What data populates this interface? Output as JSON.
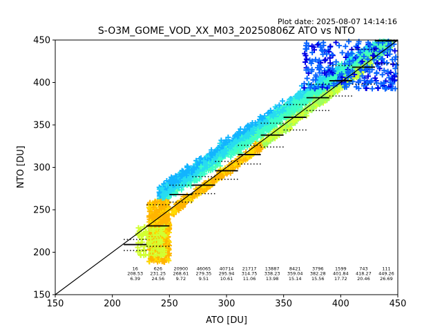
{
  "plot_date": "Plot date: 2025-08-07 14:14:16",
  "chart_data": {
    "type": "scatter",
    "title": "S-O3M_GOME_VOD_XX_M03_20250806Z ATO vs NTO",
    "xlabel": "ATO [DU]",
    "ylabel": "NTO [DU]",
    "xlim": [
      150,
      450
    ],
    "ylim": [
      150,
      450
    ],
    "xticks": [
      "150",
      "200",
      "250",
      "300",
      "350",
      "400",
      "450"
    ],
    "yticks": [
      "150",
      "200",
      "250",
      "300",
      "350",
      "400",
      "450"
    ],
    "grid": false,
    "marker": "+",
    "reference_line": "1:1",
    "density_colors": [
      "#ffb400",
      "#ffdc00",
      "#d2ff32",
      "#9cff5e",
      "#5cffa0",
      "#3cffc8",
      "#28dcf0",
      "#12b4ff",
      "#0a64ff",
      "#0000e6"
    ],
    "point_clouds": [
      {
        "x_range": [
          232,
          250
        ],
        "y_range": [
          185,
          262
        ],
        "color": "#ffb400"
      },
      {
        "x_range": [
          222,
          246
        ],
        "y_range": [
          196,
          230
        ],
        "color": "#d2ff32"
      },
      {
        "x_range": [
          241,
          300
        ],
        "y_range": [
          230,
          320
        ],
        "color": "#3cffc8"
      },
      {
        "x_range": [
          290,
          430
        ],
        "y_range": [
          280,
          420
        ],
        "color": "#5cffa0"
      },
      {
        "x_range": [
          370,
          450
        ],
        "y_range": [
          395,
          450
        ],
        "color": "#0a64ff"
      }
    ],
    "bins": [
      {
        "count": "16",
        "mean_ato": "208.53",
        "mean_nto_offset": "6.39",
        "center": 220,
        "median": 209,
        "p_low": 202,
        "p_high": 215
      },
      {
        "count": "626",
        "mean_ato": "231.25",
        "mean_nto_offset": "24.56",
        "center": 240,
        "median": 231,
        "p_low": 207,
        "p_high": 256
      },
      {
        "count": "20900",
        "mean_ato": "268.61",
        "mean_nto_offset": "9.72",
        "center": 260,
        "median": 268,
        "p_low": 259,
        "p_high": 279
      },
      {
        "count": "46065",
        "mean_ato": "279.35",
        "mean_nto_offset": "9.51",
        "center": 280,
        "median": 279,
        "p_low": 269,
        "p_high": 289
      },
      {
        "count": "40714",
        "mean_ato": "295.94",
        "mean_nto_offset": "10.61",
        "center": 300,
        "median": 296,
        "p_low": 286,
        "p_high": 307
      },
      {
        "count": "21717",
        "mean_ato": "314.75",
        "mean_nto_offset": "11.06",
        "center": 320,
        "median": 315,
        "p_low": 304,
        "p_high": 326
      },
      {
        "count": "13887",
        "mean_ato": "338.23",
        "mean_nto_offset": "13.98",
        "center": 340,
        "median": 338,
        "p_low": 324,
        "p_high": 352
      },
      {
        "count": "8421",
        "mean_ato": "359.04",
        "mean_nto_offset": "15.14",
        "center": 360,
        "median": 359,
        "p_low": 344,
        "p_high": 374
      },
      {
        "count": "3796",
        "mean_ato": "382.28",
        "mean_nto_offset": "15.56",
        "center": 380,
        "median": 382,
        "p_low": 367,
        "p_high": 398
      },
      {
        "count": "1599",
        "mean_ato": "401.84",
        "mean_nto_offset": "17.72",
        "center": 400,
        "median": 402,
        "p_low": 384,
        "p_high": 420
      },
      {
        "count": "743",
        "mean_ato": "418.27",
        "mean_nto_offset": "20.46",
        "center": 420,
        "median": 418,
        "p_low": 398,
        "p_high": 439
      },
      {
        "count": "111",
        "mean_ato": "449.26",
        "mean_nto_offset": "26.69",
        "center": 440,
        "median": 449,
        "p_low": 422,
        "p_high": 450
      }
    ],
    "bin_stats_y": [
      179,
      173,
      167
    ]
  }
}
